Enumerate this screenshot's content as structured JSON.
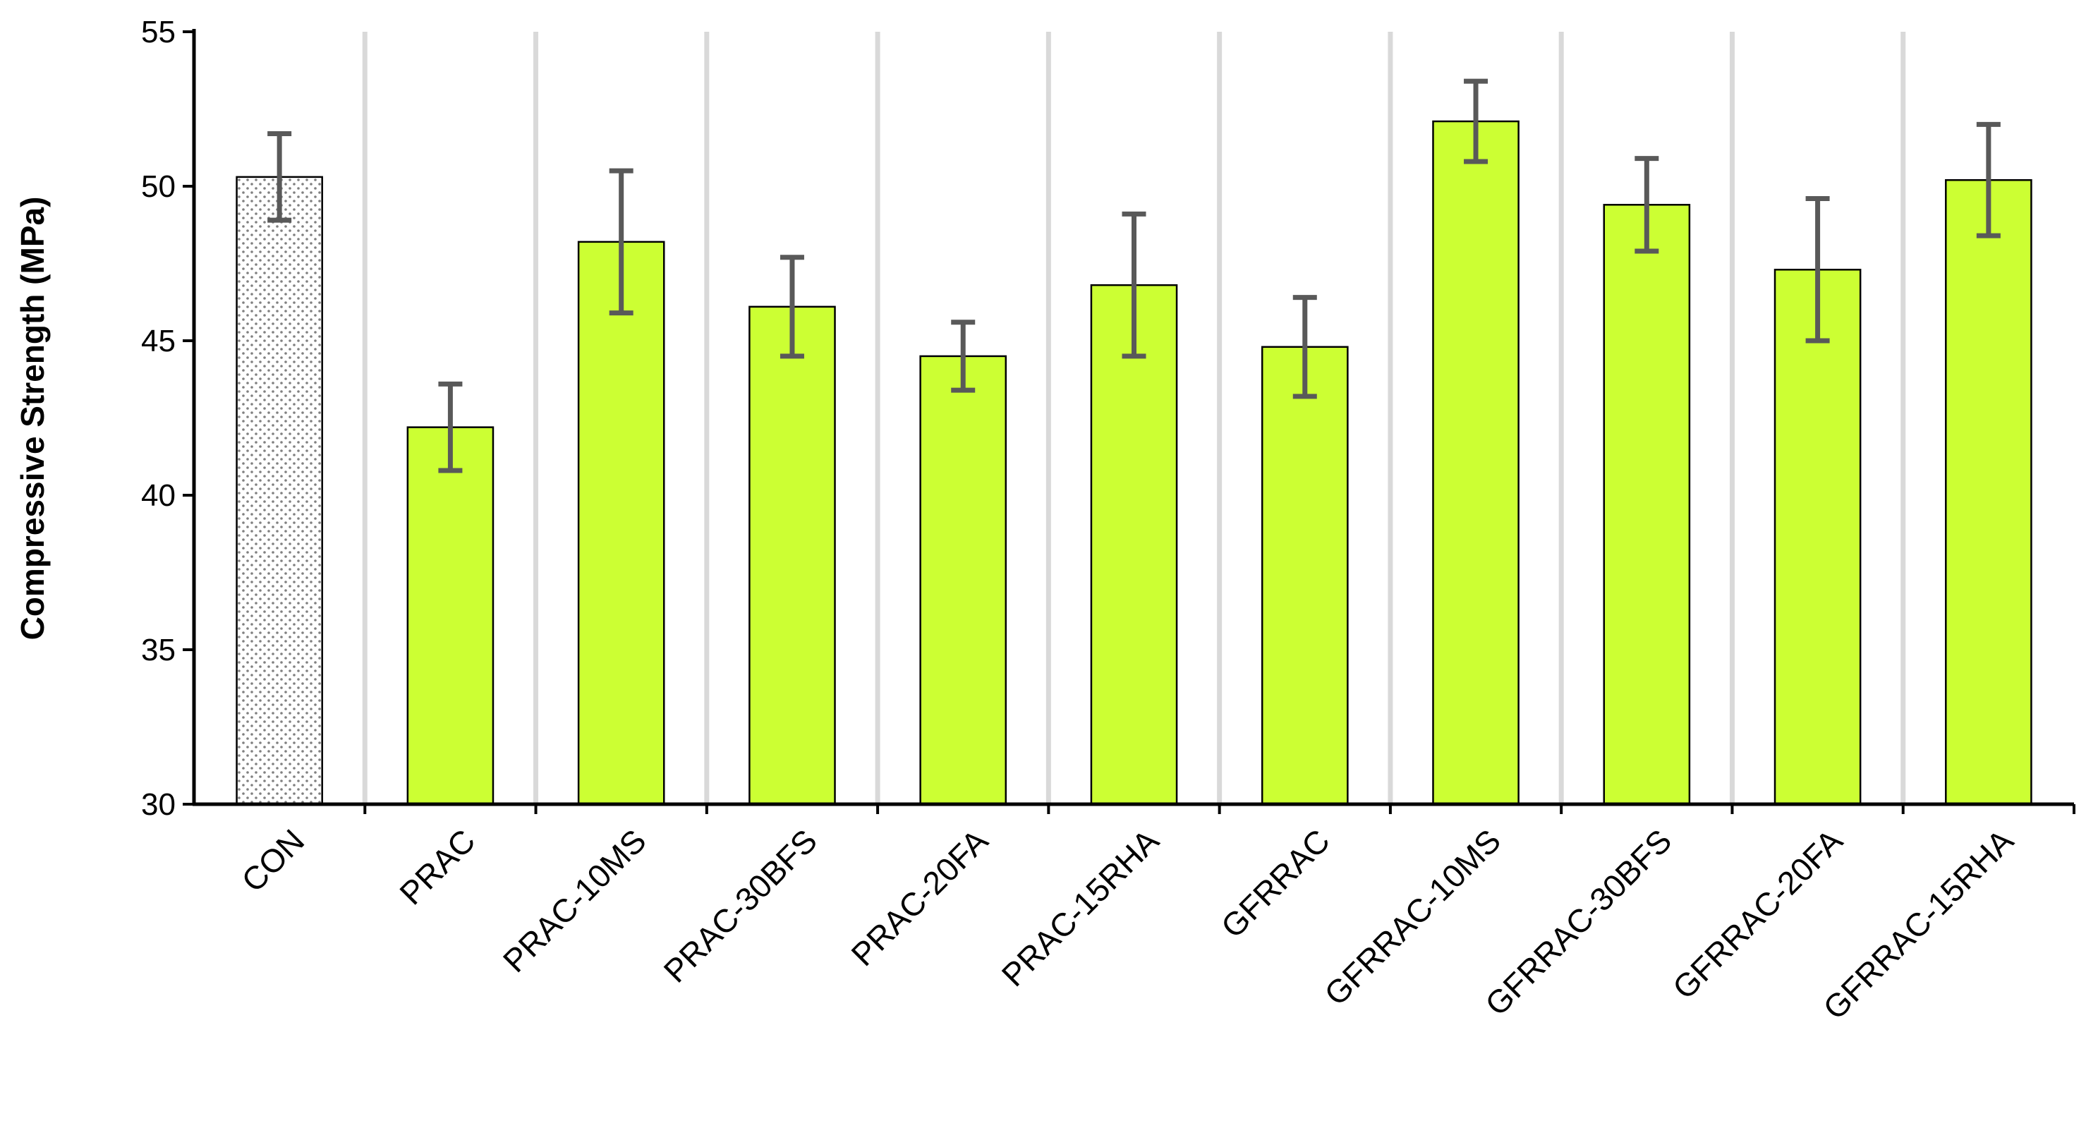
{
  "chart_data": {
    "type": "bar",
    "title": "",
    "xlabel": "",
    "ylabel": "Compressive Strength (MPa)",
    "ylim": [
      30,
      55
    ],
    "yticks": [
      30,
      35,
      40,
      45,
      50,
      55
    ],
    "grid": "vertical separators",
    "categories": [
      "CON",
      "PRAC",
      "PRAC-10MS",
      "PRAC-30BFS",
      "PRAC-20FA",
      "PRAC-15RHA",
      "GFRRAC",
      "GFRRAC-10MS",
      "GFRRAC-30BFS",
      "GFRRAC-20FA",
      "GFRRAC-15RHA"
    ],
    "values": [
      50.3,
      42.2,
      48.2,
      46.1,
      44.5,
      46.8,
      44.8,
      52.1,
      49.4,
      47.3,
      50.2
    ],
    "errors": [
      1.4,
      1.4,
      2.3,
      1.6,
      1.1,
      2.3,
      1.6,
      1.3,
      1.5,
      2.3,
      1.8
    ],
    "colors": {
      "bar_fill": "#ccff33",
      "bar_stroke": "#000000",
      "con_pattern_dots": "#808080",
      "error_bar": "#595959",
      "grid": "#d9d9d9",
      "axis": "#000000"
    },
    "patterned_categories": [
      "CON"
    ]
  }
}
